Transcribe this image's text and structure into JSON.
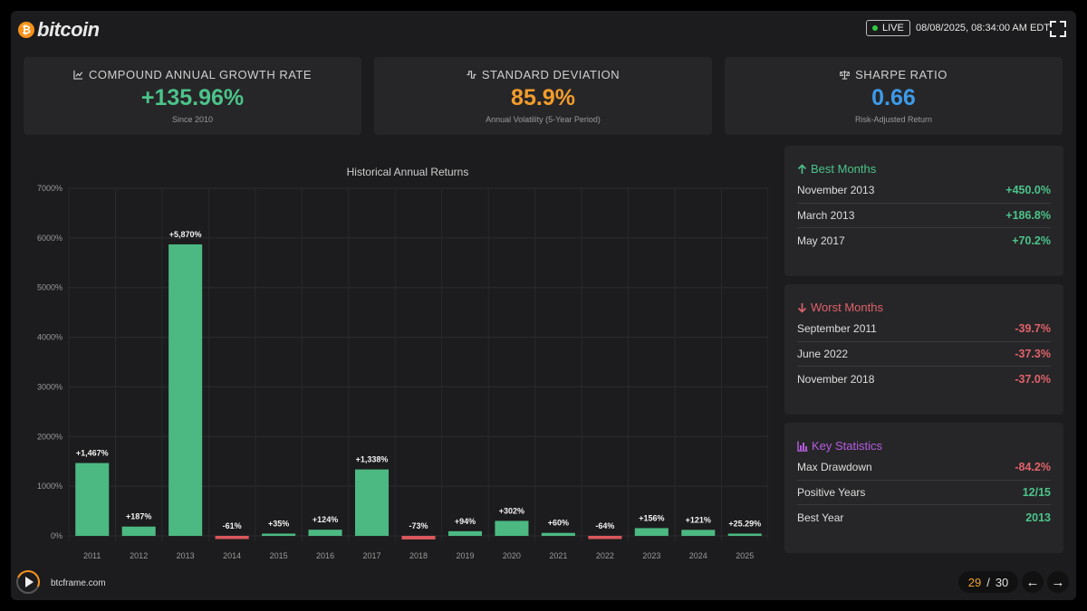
{
  "header": {
    "logo_symbol": "₿",
    "logo_text": "bitcoin",
    "live_label": "LIVE",
    "datetime": "08/08/2025, 08:34:00 AM EDT",
    "fullscreen_icon": "fullscreen-icon"
  },
  "metrics": [
    {
      "label": "COMPOUND ANNUAL GROWTH RATE",
      "value": "+135.96%",
      "sub": "Since 2010",
      "color": "#4cc38a",
      "icon": "line-chart-icon"
    },
    {
      "label": "STANDARD DEVIATION",
      "value": "85.9%",
      "sub": "Annual Volatility (5-Year Period)",
      "color": "#f39c2b",
      "icon": "waveform-icon"
    },
    {
      "label": "SHARPE RATIO",
      "value": "0.66",
      "sub": "Risk-Adjusted Return",
      "color": "#3d9be9",
      "icon": "scale-icon"
    }
  ],
  "chart_data": {
    "type": "bar",
    "title": "Historical Annual Returns",
    "categories": [
      "2011",
      "2012",
      "2013",
      "2014",
      "2015",
      "2016",
      "2017",
      "2018",
      "2019",
      "2020",
      "2021",
      "2022",
      "2023",
      "2024",
      "2025"
    ],
    "values": [
      1467,
      187,
      5870,
      -61,
      35,
      124,
      1338,
      -73,
      94,
      302,
      60,
      -64,
      156,
      121,
      25.29
    ],
    "labels": [
      "+1,467%",
      "+187%",
      "+5,870%",
      "-61%",
      "+35%",
      "+124%",
      "+1,338%",
      "-73%",
      "+94%",
      "+302%",
      "+60%",
      "-64%",
      "+156%",
      "+121%",
      "+25.29%"
    ],
    "yticks": [
      "0%",
      "1000%",
      "2000%",
      "3000%",
      "4000%",
      "5000%",
      "6000%",
      "7000%"
    ],
    "ylim": [
      0,
      7000
    ],
    "grid": true,
    "positive_color": "#4cb982",
    "negative_color": "#d9575c"
  },
  "best_months": {
    "title": "Best Months",
    "color": "#4cc38a",
    "rows": [
      {
        "label": "November 2013",
        "value": "+450.0%"
      },
      {
        "label": "March 2013",
        "value": "+186.8%"
      },
      {
        "label": "May 2017",
        "value": "+70.2%"
      }
    ]
  },
  "worst_months": {
    "title": "Worst Months",
    "color": "#e0626a",
    "rows": [
      {
        "label": "September 2011",
        "value": "-39.7%"
      },
      {
        "label": "June 2022",
        "value": "-37.3%"
      },
      {
        "label": "November 2018",
        "value": "-37.0%"
      }
    ]
  },
  "key_stats": {
    "title": "Key Statistics",
    "color": "#b65ce0",
    "rows": [
      {
        "label": "Max Drawdown",
        "value": "-84.2%",
        "color": "#e0626a"
      },
      {
        "label": "Positive Years",
        "value": "12/15",
        "color": "#4cc38a"
      },
      {
        "label": "Best Year",
        "value": "2013",
        "color": "#4cc38a"
      }
    ]
  },
  "footer": {
    "site": "btcframe.com",
    "page_current": "29",
    "page_separator": "/",
    "page_total": "30",
    "prev_label": "←",
    "next_label": "→"
  }
}
